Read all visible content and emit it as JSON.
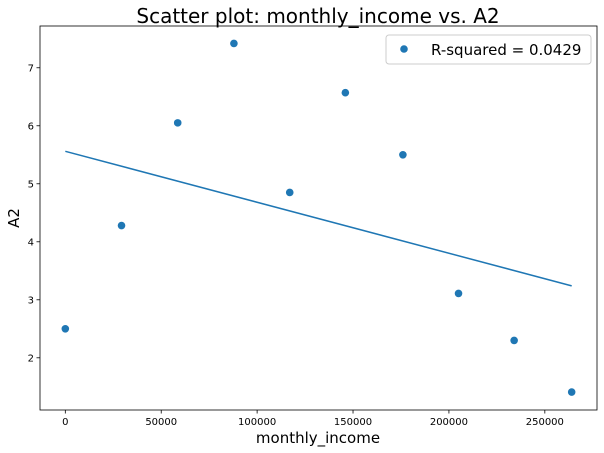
{
  "chart_data": {
    "type": "scatter",
    "title": "Scatter plot: monthly_income vs. A2",
    "xlabel": "monthly_income",
    "ylabel": "A2",
    "xlim": [
      -13200,
      277200
    ],
    "ylim": [
      1.1,
      7.72
    ],
    "xticks": [
      0,
      50000,
      100000,
      150000,
      200000,
      250000
    ],
    "yticks": [
      2,
      3,
      4,
      5,
      6,
      7
    ],
    "grid": false,
    "legend_position": "top-right",
    "legend_label": "R-squared = 0.0429",
    "color": "#1f77b4",
    "points": [
      {
        "x": 0,
        "y": 2.5
      },
      {
        "x": 29300,
        "y": 4.28
      },
      {
        "x": 58600,
        "y": 6.05
      },
      {
        "x": 87900,
        "y": 7.42
      },
      {
        "x": 117000,
        "y": 4.85
      },
      {
        "x": 146000,
        "y": 6.57
      },
      {
        "x": 176000,
        "y": 5.5
      },
      {
        "x": 205000,
        "y": 3.11
      },
      {
        "x": 234000,
        "y": 2.3
      },
      {
        "x": 264000,
        "y": 1.41
      }
    ],
    "regression_line": {
      "x": [
        0,
        264000
      ],
      "y": [
        5.56,
        3.24
      ]
    }
  }
}
